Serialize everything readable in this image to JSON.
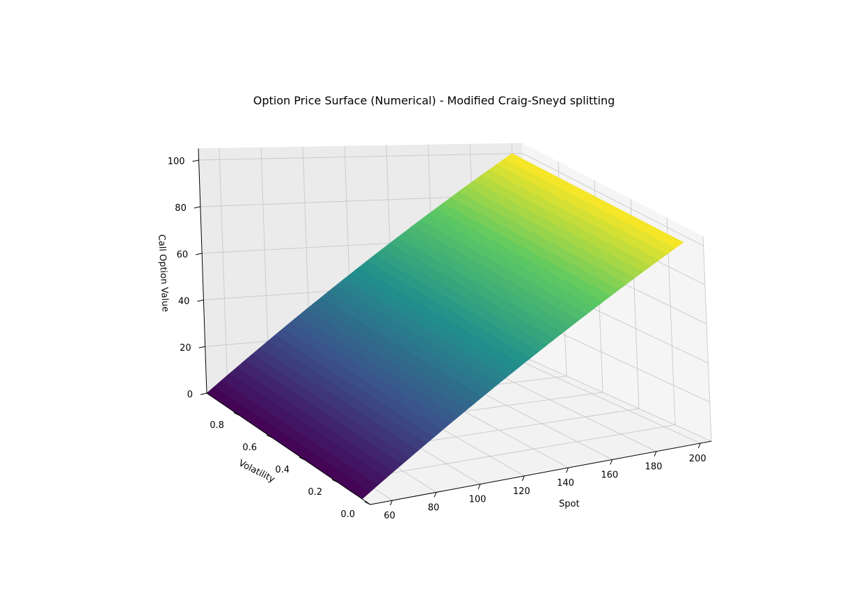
{
  "chart_data": {
    "type": "surface3d",
    "title": "Option Price Surface (Numerical) - Modified Craig-Sneyd splitting",
    "xlabel": "Spot",
    "ylabel": "Volatility",
    "zlabel": "Call Option Value",
    "x_ticks": [
      "60",
      "80",
      "100",
      "120",
      "140",
      "160",
      "180",
      "200"
    ],
    "y_ticks": [
      "0.0",
      "0.2",
      "0.4",
      "0.6",
      "0.8"
    ],
    "z_ticks": [
      "0",
      "20",
      "40",
      "60",
      "80",
      "100"
    ],
    "xlim": [
      50,
      205
    ],
    "ylim": [
      0,
      1
    ],
    "zlim": [
      0,
      105
    ],
    "surface": {
      "spot_range": [
        50,
        200
      ],
      "volatility_range": [
        0.05,
        1.0
      ],
      "value_at_corners": {
        "spot_50": 0,
        "spot_200": 100
      }
    },
    "colormap": [
      "#440154",
      "#3b528b",
      "#21918c",
      "#5ec962",
      "#fde725"
    ],
    "grid": true
  }
}
